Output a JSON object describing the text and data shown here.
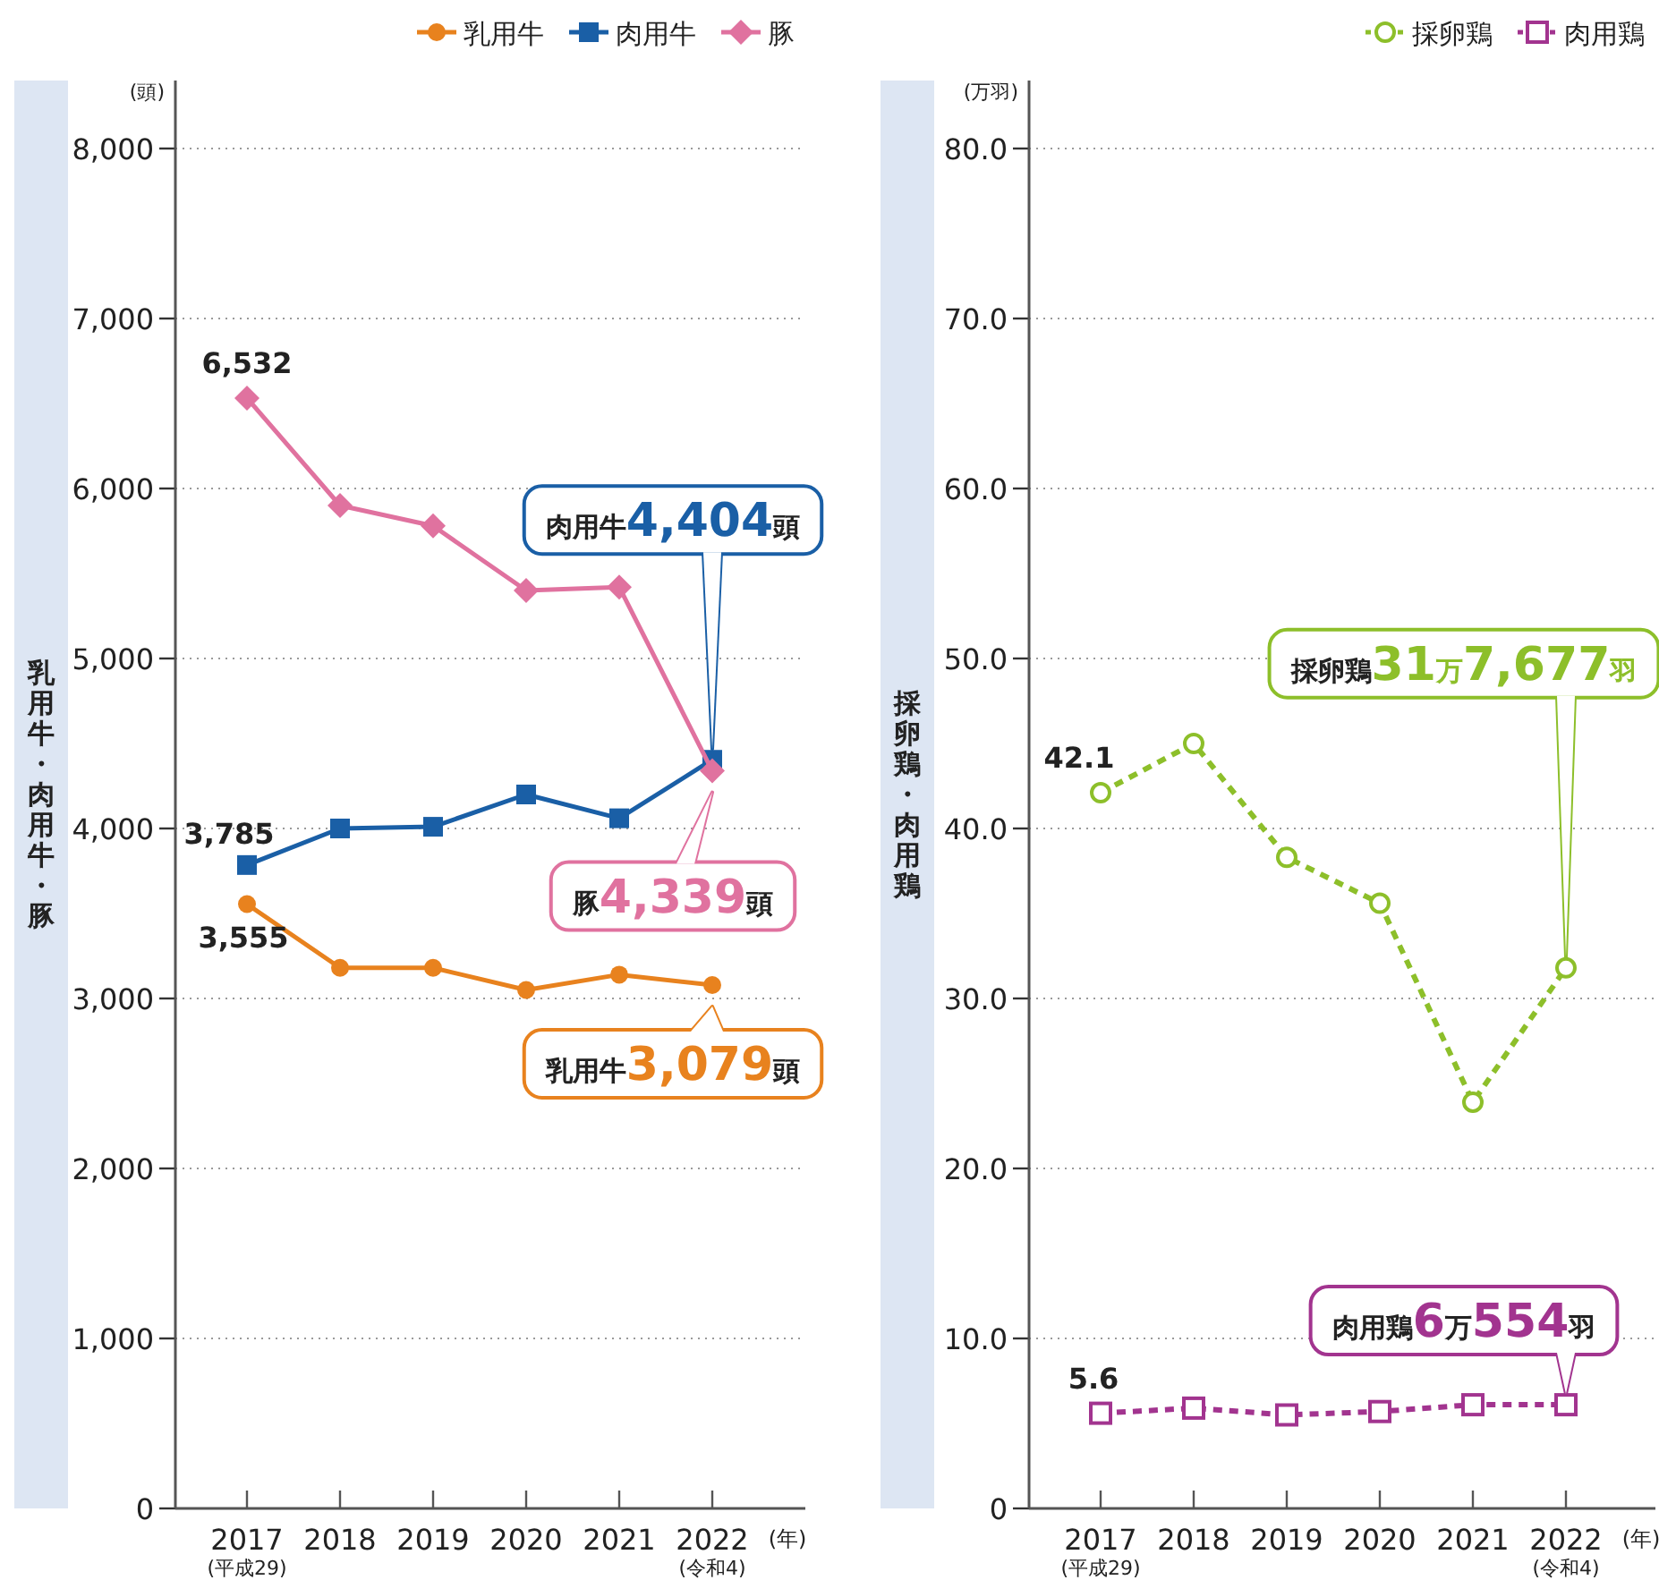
{
  "chart_data": [
    {
      "type": "line",
      "categories": [
        "2017\n(平成29)",
        "2018",
        "2019",
        "2020",
        "2021",
        "2022\n(令和4)"
      ],
      "xlabel": "(年)",
      "ylabel": "乳用牛・肉用牛・豚",
      "ylim": [
        0,
        8000
      ],
      "yticks": [
        0,
        {
          "value": 1000,
          "label": "1,000"
        },
        {
          "value": 2000,
          "label": "2,000"
        },
        {
          "value": 3000,
          "label": "3,000"
        },
        {
          "value": 4000,
          "label": "4,000"
        },
        {
          "value": 5000,
          "label": "5,000"
        },
        {
          "value": 6000,
          "label": "6,000"
        },
        {
          "value": 7000,
          "label": "7,000"
        },
        {
          "value": 8000,
          "label": "8,000"
        }
      ],
      "grid": "y",
      "legend": "top right",
      "series": [
        {
          "name": "乳用牛",
          "color": "#e8821e",
          "marker": "circle",
          "line_style": "solid",
          "values": [
            3555,
            3180,
            3180,
            3050,
            3140,
            3079
          ],
          "value_labels": [
            "3,555",
            null,
            null,
            null,
            null,
            null
          ]
        },
        {
          "name": "肉用牛",
          "color": "#1a5fa6",
          "marker": "square",
          "line_style": "solid",
          "values": [
            3785,
            4000,
            4010,
            4200,
            4060,
            4404
          ],
          "value_labels": [
            "3,785",
            null,
            null,
            null,
            null,
            null
          ]
        },
        {
          "name": "豚",
          "color": "#e0729f",
          "marker": "diamond",
          "line_style": "solid",
          "values": [
            6532,
            5900,
            5780,
            5400,
            5420,
            4339
          ],
          "value_labels": [
            "6,532",
            null,
            null,
            null,
            null,
            null
          ]
        }
      ],
      "annotations": [
        "(頭)",
        {
          "text": "肉用牛4,404頭",
          "x": "2022\n(令和4)",
          "y": 4404
        },
        {
          "text": "豚4,339頭",
          "x": "2022\n(令和4)",
          "y": 4339
        },
        {
          "text": "乳用牛3,079頭",
          "x": "2022\n(令和4)",
          "y": 3079
        }
      ]
    },
    {
      "type": "line",
      "categories": [
        "2017\n(平成29)",
        "2018",
        "2019",
        "2020",
        "2021",
        "2022\n(令和4)"
      ],
      "xlabel": "(年)",
      "ylabel": "採卵鶏・肉用鶏",
      "ylim": [
        0,
        80
      ],
      "yticks": [
        0,
        {
          "value": 10,
          "label": "10.0"
        },
        {
          "value": 20,
          "label": "20.0"
        },
        {
          "value": 30,
          "label": "30.0"
        },
        {
          "value": 40,
          "label": "40.0"
        },
        {
          "value": 50,
          "label": "50.0"
        },
        {
          "value": 60,
          "label": "60.0"
        },
        {
          "value": 70,
          "label": "70.0"
        },
        {
          "value": 80,
          "label": "80.0"
        }
      ],
      "grid": "y",
      "legend": "top right",
      "series": [
        {
          "name": "採卵鶏",
          "color": "#8dbf2a",
          "marker": "circle",
          "line_style": "dashed",
          "values": [
            42.1,
            45.0,
            38.3,
            35.6,
            23.9,
            31.8
          ],
          "value_labels": [
            "42.1",
            null,
            null,
            null,
            null,
            null
          ]
        },
        {
          "name": "肉用鶏",
          "color": "#a2348f",
          "marker": "square",
          "line_style": "dashed",
          "values": [
            5.6,
            5.9,
            5.5,
            5.7,
            6.1,
            6.1
          ],
          "value_labels": [
            "5.6",
            null,
            null,
            null,
            null,
            null
          ]
        }
      ],
      "annotations": [
        "(万羽)",
        {
          "text": "採卵鶏31万7,677羽",
          "x": "2022\n(令和4)",
          "y": 31.8
        },
        {
          "text": "肉用鶏6万554羽",
          "x": "2022\n(令和4)",
          "y": 6.1
        }
      ]
    }
  ]
}
